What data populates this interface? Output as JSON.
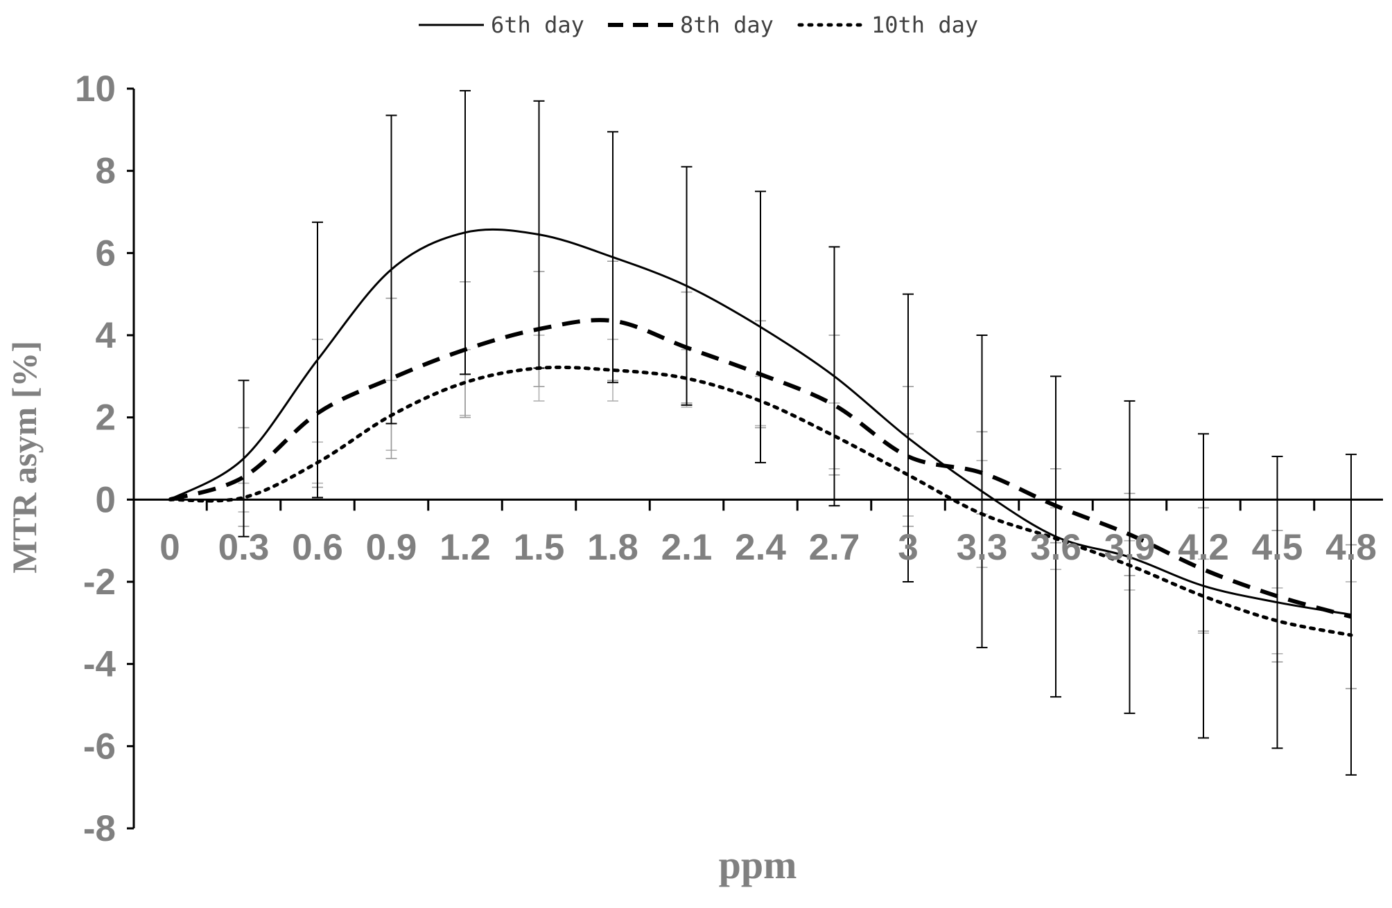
{
  "chart_data": {
    "type": "line",
    "title": "",
    "xlabel": "ppm",
    "ylabel": "MTR asym [%]",
    "categories": [
      "0",
      "0.3",
      "0.6",
      "0.9",
      "1.2",
      "1.5",
      "1.8",
      "2.1",
      "2.4",
      "2.7",
      "3",
      "3.3",
      "3.6",
      "3.9",
      "4.2",
      "4.5",
      "4.8"
    ],
    "ylim": [
      -8,
      10
    ],
    "yticks": [
      10,
      8,
      6,
      4,
      2,
      0,
      -2,
      -4,
      -6,
      -8
    ],
    "grid": false,
    "legend_position": "top",
    "series": [
      {
        "name": "6th day",
        "style": "solid",
        "color": "#000000",
        "error_color": "#000000",
        "values": [
          0,
          1.0,
          3.4,
          5.6,
          6.5,
          6.45,
          5.9,
          5.2,
          4.2,
          3.0,
          1.5,
          0.2,
          -0.9,
          -1.4,
          -2.1,
          -2.5,
          -2.8
        ],
        "errors": [
          0,
          1.9,
          3.35,
          3.75,
          3.45,
          3.25,
          3.05,
          2.9,
          3.3,
          3.15,
          3.5,
          3.8,
          3.9,
          3.8,
          3.7,
          3.55,
          3.9
        ]
      },
      {
        "name": "8th day",
        "style": "dashed",
        "color": "#000000",
        "error_color": "#9a9a9a",
        "values": [
          0,
          0.55,
          2.1,
          2.95,
          3.65,
          4.15,
          4.35,
          3.7,
          3.05,
          2.3,
          1.05,
          0.65,
          -0.15,
          -0.85,
          -1.7,
          -2.35,
          -2.85
        ],
        "errors": [
          0,
          1.2,
          1.8,
          1.95,
          1.65,
          1.4,
          1.45,
          1.35,
          1.3,
          1.7,
          1.7,
          1.0,
          0.9,
          1.0,
          1.5,
          1.6,
          1.75
        ]
      },
      {
        "name": "10th day",
        "style": "dotted",
        "color": "#000000",
        "error_color": "#b0b0b0",
        "values": [
          0,
          0.05,
          0.9,
          2.05,
          2.85,
          3.2,
          3.15,
          2.95,
          2.4,
          1.55,
          0.6,
          -0.35,
          -0.95,
          -1.6,
          -2.35,
          -2.95,
          -3.3
        ],
        "errors": [
          0,
          0.35,
          0.5,
          0.85,
          0.8,
          0.8,
          0.75,
          0.7,
          0.6,
          0.8,
          1.0,
          1.3,
          0.75,
          0.6,
          0.9,
          0.8,
          1.3
        ]
      }
    ]
  }
}
